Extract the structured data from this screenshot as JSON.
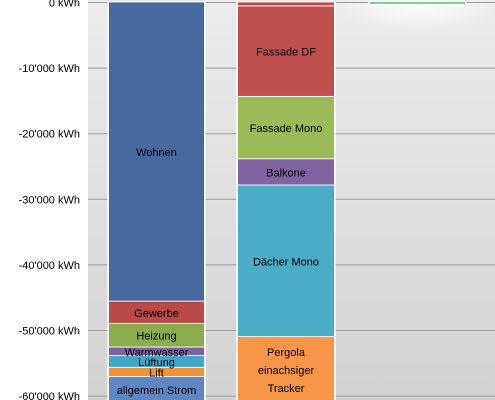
{
  "chart_data": {
    "type": "bar",
    "stacked": true,
    "orientation": "vertical",
    "grid": true,
    "y_unit": "kWh",
    "ylim": [
      -61000,
      300
    ],
    "y_ticks": [
      0,
      -10000,
      -20000,
      -30000,
      -40000,
      -50000,
      -60000
    ],
    "y_tick_labels": [
      "0  kWh",
      "-10'000  kWh",
      "-20'000  kWh",
      "-30'000  kWh",
      "-40'000  kWh",
      "-50'000  kWh",
      "-60'000  kWh"
    ],
    "series": [
      {
        "column": 1,
        "segments": [
          {
            "label": "Wohnen",
            "start": 0,
            "end": -45600,
            "color": "#4769a0"
          },
          {
            "label": "Gewerbe",
            "start": -45600,
            "end": -49000,
            "color": "#b94a48"
          },
          {
            "label": "Heizung",
            "start": -49000,
            "end": -52600,
            "color": "#8aab4e"
          },
          {
            "label": "Warmwasser",
            "start": -52600,
            "end": -53900,
            "color": "#7e62a1"
          },
          {
            "label": "Lüftung",
            "start": -53900,
            "end": -55700,
            "color": "#3fa6c5"
          },
          {
            "label": "Lift",
            "start": -55700,
            "end": -57100,
            "color": "#f0923a"
          },
          {
            "label": "allgemein Strom",
            "start": -57100,
            "end": -61000,
            "color": "#5e86c5"
          }
        ]
      },
      {
        "column": 2,
        "segments": [
          {
            "label": "",
            "start": 0,
            "end": -600,
            "color": "#b94a48"
          },
          {
            "label": "Fassade DF",
            "start": -600,
            "end": -14400,
            "color": "#c0504d"
          },
          {
            "label": "Fassade Mono",
            "start": -14400,
            "end": -23900,
            "color": "#9bbb59"
          },
          {
            "label": "Balkone",
            "start": -23900,
            "end": -27900,
            "color": "#8064a2"
          },
          {
            "label": "Dächer Mono",
            "start": -27900,
            "end": -51000,
            "color": "#4bacc6"
          },
          {
            "label": "Pergola einachsiger Tracker",
            "label_lines": [
              "Pergola",
              "einachsiger",
              "Tracker"
            ],
            "start": -51000,
            "end": -61000,
            "color": "#f79646"
          }
        ]
      },
      {
        "column": 3,
        "segments": [
          {
            "label": "",
            "start": 0,
            "end": -300,
            "color": "#00b050"
          }
        ]
      }
    ]
  }
}
